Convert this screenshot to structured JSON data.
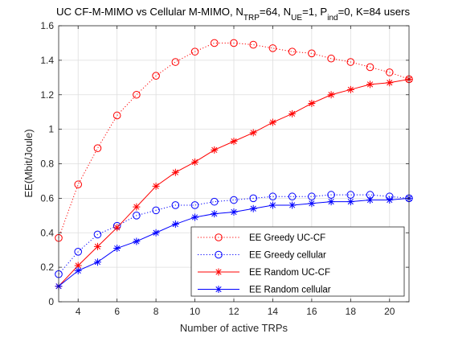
{
  "figure": {
    "title_parts": [
      {
        "text": "UC CF-M-MIMO vs Cellular M-MIMO, N",
        "sub": false
      },
      {
        "text": "TRP",
        "sub": true
      },
      {
        "text": "=64, N",
        "sub": false
      },
      {
        "text": "UE",
        "sub": true
      },
      {
        "text": "=1, P",
        "sub": false
      },
      {
        "text": "ind",
        "sub": true
      },
      {
        "text": "=0, K=84 users",
        "sub": false
      }
    ]
  },
  "chart_data": {
    "type": "line",
    "title": "UC CF-M-MIMO vs Cellular M-MIMO, NTRP=64, NUE=1, Pind=0, K=84 users",
    "xlabel": "Number of active TRPs",
    "ylabel": "EE(Mbit/Joule)",
    "xlim": [
      3,
      21
    ],
    "ylim": [
      0,
      1.6
    ],
    "xticks": [
      4,
      6,
      8,
      10,
      12,
      14,
      16,
      18,
      20
    ],
    "xtick_labels": [
      "4",
      "6",
      "8",
      "10",
      "12",
      "14",
      "16",
      "18",
      "20"
    ],
    "yticks": [
      0,
      0.2,
      0.4,
      0.6,
      0.8,
      1.0,
      1.2,
      1.4,
      1.6
    ],
    "ytick_labels": [
      "0",
      "0.2",
      "0.4",
      "0.6",
      "0.8",
      "1",
      "1.2",
      "1.4",
      "1.6"
    ],
    "grid": true,
    "legend_position": "bottom-right",
    "x": [
      3,
      4,
      5,
      6,
      7,
      8,
      9,
      10,
      11,
      12,
      13,
      14,
      15,
      16,
      17,
      18,
      19,
      20,
      21
    ],
    "series": [
      {
        "name": "EE Greedy UC-CF",
        "color": "#ff0000",
        "line_style": "dotted",
        "marker": "circle",
        "values": [
          0.37,
          0.68,
          0.89,
          1.08,
          1.2,
          1.31,
          1.39,
          1.45,
          1.5,
          1.5,
          1.49,
          1.47,
          1.45,
          1.44,
          1.41,
          1.39,
          1.36,
          1.33,
          1.29
        ]
      },
      {
        "name": "EE Greedy cellular",
        "color": "#0000ff",
        "line_style": "dotted",
        "marker": "circle",
        "values": [
          0.16,
          0.29,
          0.39,
          0.44,
          0.5,
          0.53,
          0.56,
          0.56,
          0.58,
          0.59,
          0.6,
          0.61,
          0.61,
          0.61,
          0.62,
          0.62,
          0.62,
          0.61,
          0.6
        ]
      },
      {
        "name": "EE Random UC-CF",
        "color": "#ff0000",
        "line_style": "solid",
        "marker": "star",
        "values": [
          0.09,
          0.21,
          0.32,
          0.43,
          0.55,
          0.67,
          0.75,
          0.81,
          0.88,
          0.93,
          0.98,
          1.04,
          1.09,
          1.15,
          1.2,
          1.23,
          1.26,
          1.27,
          1.29
        ]
      },
      {
        "name": "EE Random cellular",
        "color": "#0000ff",
        "line_style": "solid",
        "marker": "star",
        "values": [
          0.09,
          0.18,
          0.23,
          0.31,
          0.35,
          0.4,
          0.45,
          0.49,
          0.51,
          0.52,
          0.54,
          0.56,
          0.56,
          0.57,
          0.58,
          0.58,
          0.59,
          0.59,
          0.6
        ]
      }
    ]
  }
}
